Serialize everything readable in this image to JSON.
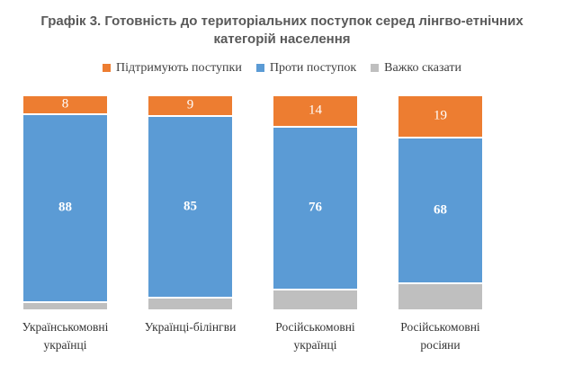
{
  "chart_data": {
    "type": "bar",
    "subtype": "stacked-100-percent",
    "title": "Графік 3. Готовність до територіальних поступок серед лінгво-етнічних категорій населення",
    "categories": [
      "Українськомовні українці",
      "Українці-білінгви",
      "Російськомовні українці",
      "Російськомовні росіяни"
    ],
    "series": [
      {
        "name": "Підтримують поступки",
        "color": "#ED7D31",
        "values": [
          8,
          9,
          14,
          19
        ],
        "labels_visible": true,
        "labels_bold": false
      },
      {
        "name": "Проти поступок",
        "color": "#5B9BD5",
        "values": [
          88,
          85,
          76,
          68
        ],
        "labels_visible": true,
        "labels_bold": true
      },
      {
        "name": "Важко сказати",
        "color": "#BFBFBF",
        "values": [
          4,
          6,
          10,
          13
        ],
        "labels_visible": false,
        "labels_bold": false
      }
    ],
    "ylim": [
      0,
      100
    ],
    "grid": false,
    "axis_lines": false,
    "legend_position": "top",
    "bar_label_color": "#FFFFFF",
    "title_color": "#595959",
    "axis_text_color": "#333333",
    "background_color": "#FFFFFF"
  }
}
